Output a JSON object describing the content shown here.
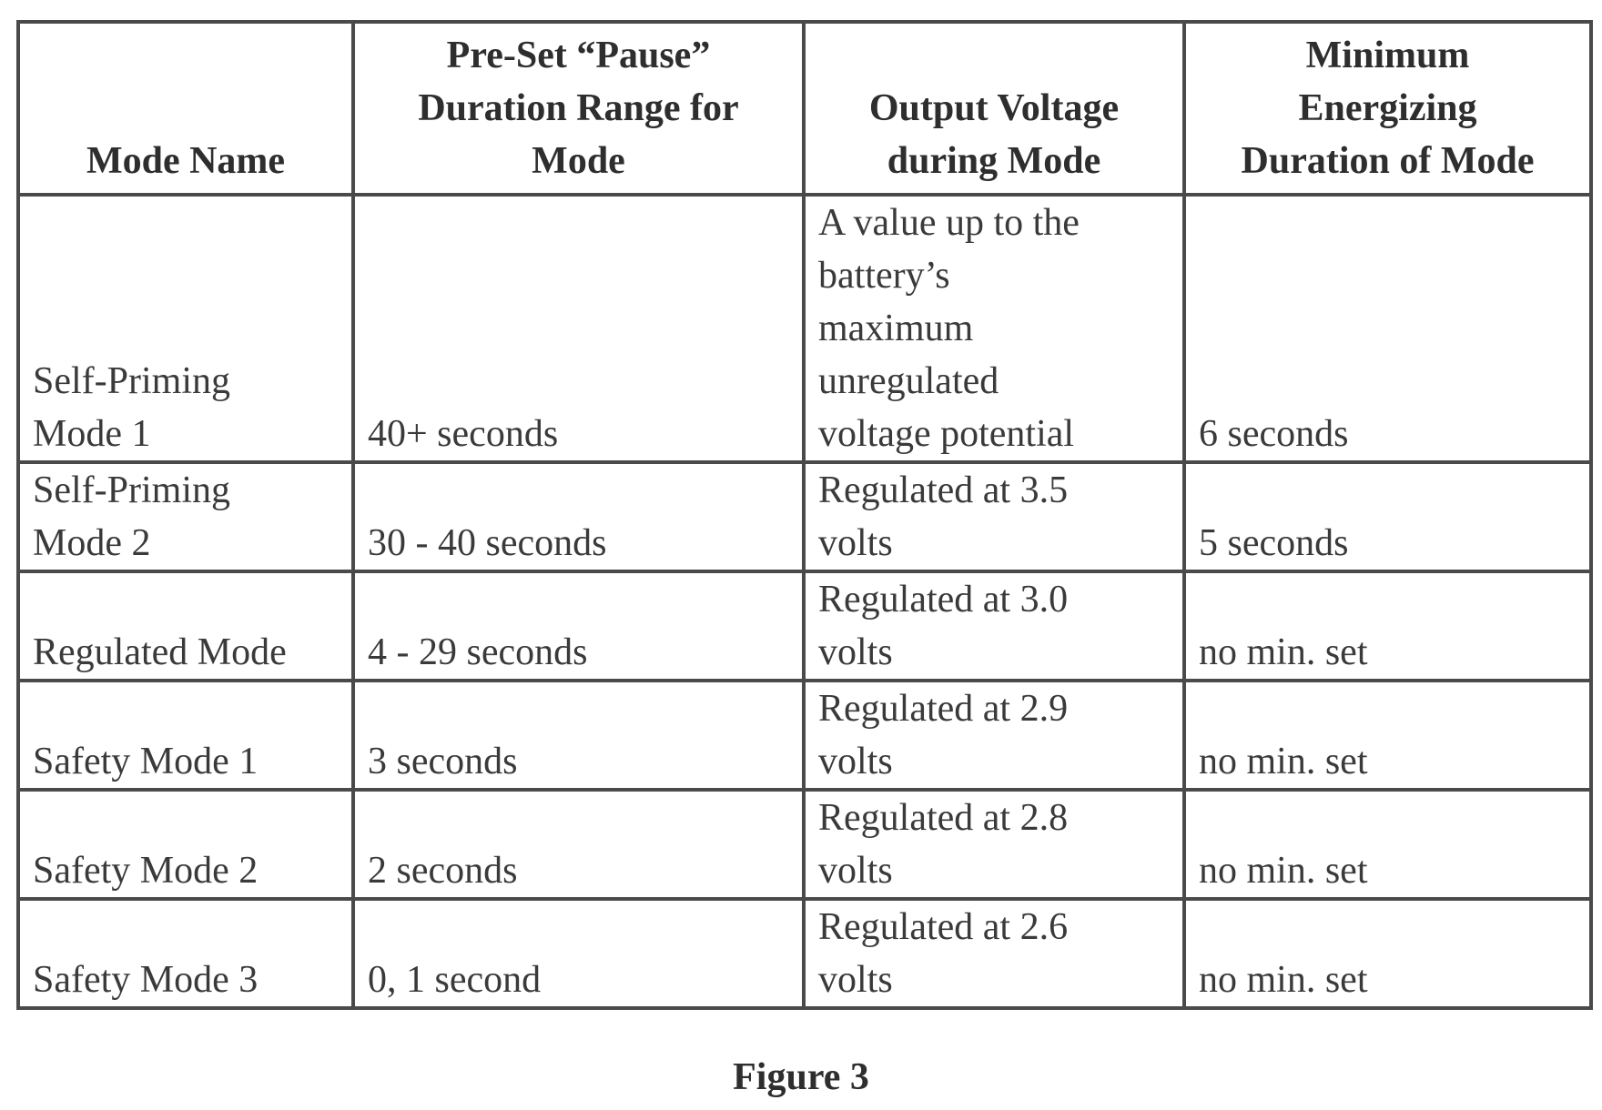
{
  "table": {
    "headers": [
      [
        "Mode Name"
      ],
      [
        "Pre-Set “Pause”",
        "Duration Range for",
        "Mode"
      ],
      [
        "Output Voltage",
        "during Mode"
      ],
      [
        "Minimum",
        "Energizing",
        "Duration of Mode"
      ]
    ],
    "rows": [
      {
        "mode": [
          "Self-Priming",
          "Mode 1"
        ],
        "pause": "40+ seconds",
        "voltage": [
          "A value up to the",
          "battery’s",
          "maximum",
          "unregulated",
          "voltage potential"
        ],
        "min_duration": "6 seconds"
      },
      {
        "mode": [
          "Self-Priming",
          "Mode 2"
        ],
        "pause": "30 - 40 seconds",
        "voltage": [
          "Regulated at 3.5",
          "volts"
        ],
        "min_duration": "5 seconds"
      },
      {
        "mode": [
          "Regulated Mode"
        ],
        "pause": "4 - 29 seconds",
        "voltage": [
          "Regulated at 3.0",
          "volts"
        ],
        "min_duration": "no min. set"
      },
      {
        "mode": [
          "Safety Mode 1"
        ],
        "pause": "3 seconds",
        "voltage": [
          "Regulated at 2.9",
          "volts"
        ],
        "min_duration": "no min. set"
      },
      {
        "mode": [
          "Safety Mode 2"
        ],
        "pause": "2 seconds",
        "voltage": [
          "Regulated at 2.8",
          "volts"
        ],
        "min_duration": "no min. set"
      },
      {
        "mode": [
          "Safety Mode 3"
        ],
        "pause": "0, 1 second",
        "voltage": [
          "Regulated at 2.6",
          "volts"
        ],
        "min_duration": "no min. set"
      }
    ]
  },
  "caption": "Figure 3"
}
